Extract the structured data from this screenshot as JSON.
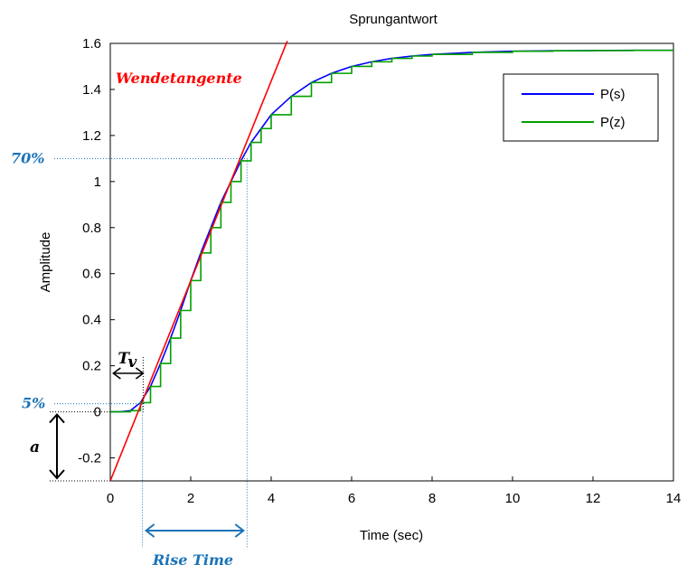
{
  "chart_data": {
    "type": "line",
    "title": "Sprungantwort",
    "xlabel": "Time (sec)",
    "ylabel": "Amplitude",
    "xlim": [
      0,
      14
    ],
    "ylim": [
      -0.3,
      1.6
    ],
    "xticks": [
      0,
      2,
      4,
      6,
      8,
      10,
      12,
      14
    ],
    "xtick_labels": [
      "0",
      "2",
      "4",
      "6",
      "8",
      "10",
      "12",
      "14"
    ],
    "yticks": [
      -0.2,
      0,
      0.2,
      0.4,
      0.6,
      0.8,
      1,
      1.2,
      1.4,
      1.6
    ],
    "ytick_labels": [
      "-0.2",
      "0",
      "0.2",
      "0.4",
      "0.6",
      "0.8",
      "1",
      "1.2",
      "1.4",
      "1.6"
    ],
    "grid": true,
    "legend_position": "top-right",
    "final_value": 1.57,
    "series": [
      {
        "name": "P(s)",
        "color": "#0000ff",
        "kind": "continuous",
        "x": [
          0,
          0.25,
          0.5,
          0.75,
          1.0,
          1.25,
          1.5,
          1.75,
          2.0,
          2.25,
          2.5,
          2.75,
          3.0,
          3.25,
          3.5,
          3.75,
          4.0,
          4.5,
          5.0,
          5.5,
          6.0,
          6.5,
          7.0,
          7.5,
          8.0,
          9.0,
          10.0,
          11.0,
          12.0,
          13.0,
          14.0
        ],
        "y": [
          0,
          0.0,
          0.005,
          0.04,
          0.11,
          0.21,
          0.32,
          0.44,
          0.57,
          0.69,
          0.8,
          0.91,
          1.0,
          1.09,
          1.17,
          1.23,
          1.29,
          1.37,
          1.43,
          1.47,
          1.5,
          1.52,
          1.535,
          1.545,
          1.552,
          1.561,
          1.566,
          1.568,
          1.569,
          1.57,
          1.57
        ]
      },
      {
        "name": "P(z)",
        "color": "#00a000",
        "kind": "step",
        "x": [
          0,
          0.25,
          0.5,
          0.75,
          1.0,
          1.25,
          1.5,
          1.75,
          2.0,
          2.25,
          2.5,
          2.75,
          3.0,
          3.25,
          3.5,
          3.75,
          4.0,
          4.5,
          5.0,
          5.5,
          6.0,
          6.5,
          7.0,
          7.5,
          8.0,
          9.0,
          10.0,
          11.0,
          12.0,
          13.0,
          14.0
        ],
        "y": [
          0,
          0.0,
          0.005,
          0.04,
          0.11,
          0.21,
          0.32,
          0.44,
          0.57,
          0.69,
          0.8,
          0.91,
          1.0,
          1.09,
          1.17,
          1.23,
          1.29,
          1.37,
          1.43,
          1.47,
          1.5,
          1.52,
          1.535,
          1.545,
          1.552,
          1.561,
          1.566,
          1.568,
          1.569,
          1.57,
          1.57
        ]
      }
    ],
    "tangent": {
      "label": "Wendetangente",
      "color": "#ff0000",
      "x": [
        0,
        4.4
      ],
      "y": [
        -0.3,
        1.61
      ]
    },
    "annotations": {
      "pct70_label": "70%",
      "pct70_y": 1.1,
      "pct70_x": 3.4,
      "pct5_label": "5%",
      "pct5_y": 0.035,
      "pct5_x": 0.8,
      "tv_label": "T",
      "tv_sub": "v",
      "a_label": "a",
      "rise_time_label": "Rise Time",
      "annotation_color": "#1a73b8"
    }
  }
}
